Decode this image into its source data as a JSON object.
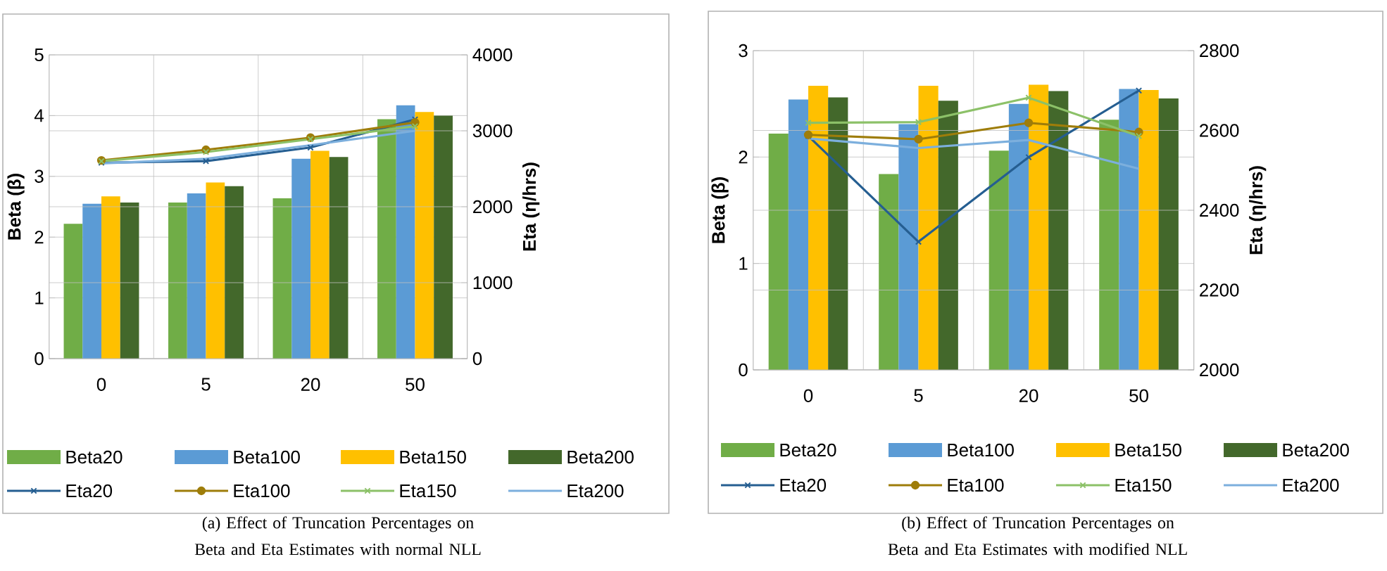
{
  "chart_data": [
    {
      "type": "bar",
      "categories": [
        "0",
        "5",
        "20",
        "50"
      ],
      "ylabel": "Beta (β)",
      "y2label": "Eta (η/hrs)",
      "ylim": [
        0,
        5
      ],
      "yticks": [
        0,
        1,
        2,
        3,
        4,
        5
      ],
      "y2lim": [
        0,
        4000
      ],
      "y2ticks": [
        0,
        1000,
        2000,
        3000,
        4000
      ],
      "grid": true,
      "legend": "bottom",
      "series": [
        {
          "name": "Beta20",
          "color": "#70ad47",
          "values": [
            2.22,
            2.57,
            2.64,
            3.94
          ]
        },
        {
          "name": "Beta100",
          "color": "#5b9bd5",
          "values": [
            2.55,
            2.72,
            3.29,
            4.17
          ]
        },
        {
          "name": "Beta150",
          "color": "#ffc000",
          "values": [
            2.67,
            2.9,
            3.42,
            4.06
          ]
        },
        {
          "name": "Beta200",
          "color": "#43682b",
          "values": [
            2.57,
            2.84,
            3.32,
            4.0
          ]
        },
        {
          "name": "Eta20",
          "type": "line",
          "axis": "y2",
          "marker": "cross",
          "color": "#255e91",
          "values": [
            2580,
            2600,
            2780,
            3150
          ]
        },
        {
          "name": "Eta100",
          "type": "line",
          "axis": "y2",
          "marker": "circle",
          "color": "#9e7d0a",
          "values": [
            2610,
            2750,
            2910,
            3110
          ]
        },
        {
          "name": "Eta150",
          "type": "line",
          "axis": "y2",
          "marker": "cross",
          "color": "#8cc168",
          "values": [
            2600,
            2720,
            2890,
            3060
          ]
        },
        {
          "name": "Eta200",
          "type": "line",
          "axis": "y2",
          "marker": "none",
          "color": "#7cafdd",
          "values": [
            2570,
            2630,
            2810,
            3000
          ]
        }
      ],
      "annotations": [
        "(a) Effect of Truncation Percentages on Beta and Eta Estimates with normal NLL"
      ]
    },
    {
      "type": "bar",
      "categories": [
        "0",
        "5",
        "20",
        "50"
      ],
      "ylabel": "Beta (β)",
      "y2label": "Eta (η/hrs)",
      "ylim": [
        0,
        3
      ],
      "yticks": [
        0,
        1,
        2,
        3
      ],
      "y2lim": [
        2000,
        2800
      ],
      "y2ticks": [
        2000,
        2200,
        2400,
        2600,
        2800
      ],
      "grid": true,
      "legend": "bottom",
      "series": [
        {
          "name": "Beta20",
          "color": "#70ad47",
          "values": [
            2.22,
            1.84,
            2.06,
            2.35
          ]
        },
        {
          "name": "Beta100",
          "color": "#5b9bd5",
          "values": [
            2.54,
            2.31,
            2.5,
            2.64
          ]
        },
        {
          "name": "Beta150",
          "color": "#ffc000",
          "values": [
            2.67,
            2.67,
            2.68,
            2.63
          ]
        },
        {
          "name": "Beta200",
          "color": "#43682b",
          "values": [
            2.56,
            2.53,
            2.62,
            2.55
          ]
        },
        {
          "name": "Eta20",
          "type": "line",
          "axis": "y2",
          "marker": "cross",
          "color": "#255e91",
          "values": [
            2586,
            2321,
            2533,
            2700
          ]
        },
        {
          "name": "Eta100",
          "type": "line",
          "axis": "y2",
          "marker": "circle",
          "color": "#9e7d0a",
          "values": [
            2589,
            2578,
            2619,
            2596
          ]
        },
        {
          "name": "Eta150",
          "type": "line",
          "axis": "y2",
          "marker": "cross",
          "color": "#8cc168",
          "values": [
            2619,
            2621,
            2682,
            2586
          ]
        },
        {
          "name": "Eta200",
          "type": "line",
          "axis": "y2",
          "marker": "none",
          "color": "#7cafdd",
          "values": [
            2580,
            2556,
            2576,
            2504
          ]
        }
      ],
      "annotations": [
        "(b) Effect of Truncation Percentages on Beta and Eta Estimates with modified NLL"
      ]
    }
  ]
}
